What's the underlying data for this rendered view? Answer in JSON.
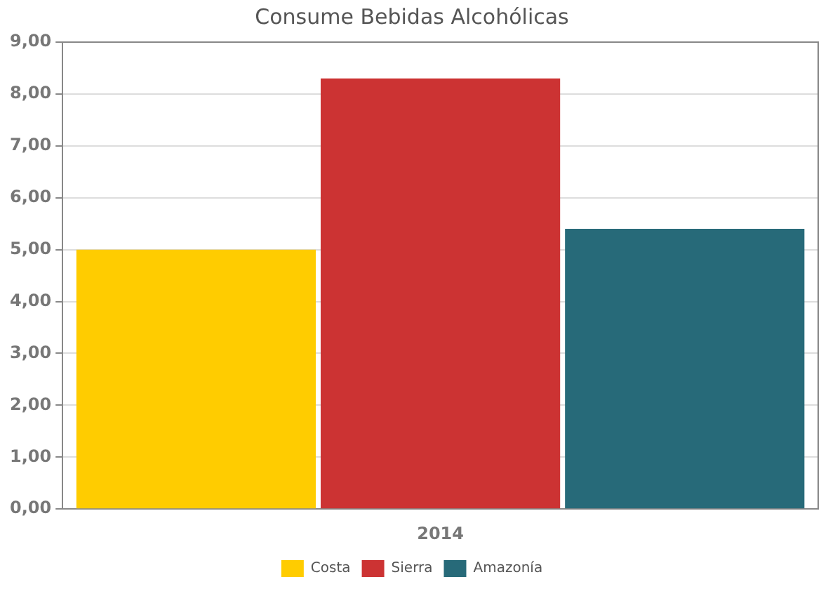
{
  "chart_data": {
    "type": "bar",
    "title": "Consume Bebidas Alcohólicas",
    "categories": [
      "2014"
    ],
    "series": [
      {
        "name": "Costa",
        "color": "#ffcc00",
        "values": [
          5.0
        ]
      },
      {
        "name": "Sierra",
        "color": "#cc3333",
        "values": [
          8.3
        ]
      },
      {
        "name": "Amazonía",
        "color": "#276a79",
        "values": [
          5.4
        ]
      }
    ],
    "ylim": [
      0,
      9
    ],
    "yticks": [
      {
        "value": 0,
        "label": "0,00"
      },
      {
        "value": 1,
        "label": "1,00"
      },
      {
        "value": 2,
        "label": "2,00"
      },
      {
        "value": 3,
        "label": "3,00"
      },
      {
        "value": 4,
        "label": "4,00"
      },
      {
        "value": 5,
        "label": "5,00"
      },
      {
        "value": 6,
        "label": "6,00"
      },
      {
        "value": 7,
        "label": "7,00"
      },
      {
        "value": 8,
        "label": "8,00"
      },
      {
        "value": 9,
        "label": "9,00"
      }
    ],
    "grid": "y",
    "legend": "bottom"
  }
}
